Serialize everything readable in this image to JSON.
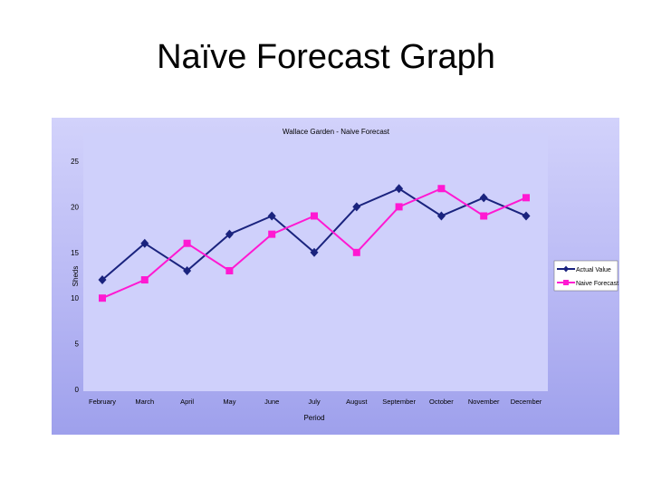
{
  "slide": {
    "title": "Naïve Forecast Graph"
  },
  "chart_data": {
    "type": "line",
    "title": "Wallace Garden - Naive Forecast",
    "xlabel": "Period",
    "ylabel": "Sheds",
    "ylim": [
      0,
      25
    ],
    "yticks": [
      0,
      5,
      10,
      15,
      20,
      25
    ],
    "grid": false,
    "legend": "right",
    "categories": [
      "February",
      "March",
      "April",
      "May",
      "June",
      "July",
      "August",
      "September",
      "October",
      "November",
      "December"
    ],
    "series": [
      {
        "name": "Actual Value",
        "color": "#1a237e",
        "marker": "diamond",
        "values": [
          12,
          16,
          13,
          17,
          19,
          15,
          20,
          22,
          19,
          21,
          19
        ]
      },
      {
        "name": "Naive Forecast",
        "color": "#ff19d2",
        "marker": "square",
        "values": [
          10,
          12,
          16,
          13,
          17,
          19,
          15,
          20,
          22,
          19,
          21
        ]
      }
    ]
  }
}
